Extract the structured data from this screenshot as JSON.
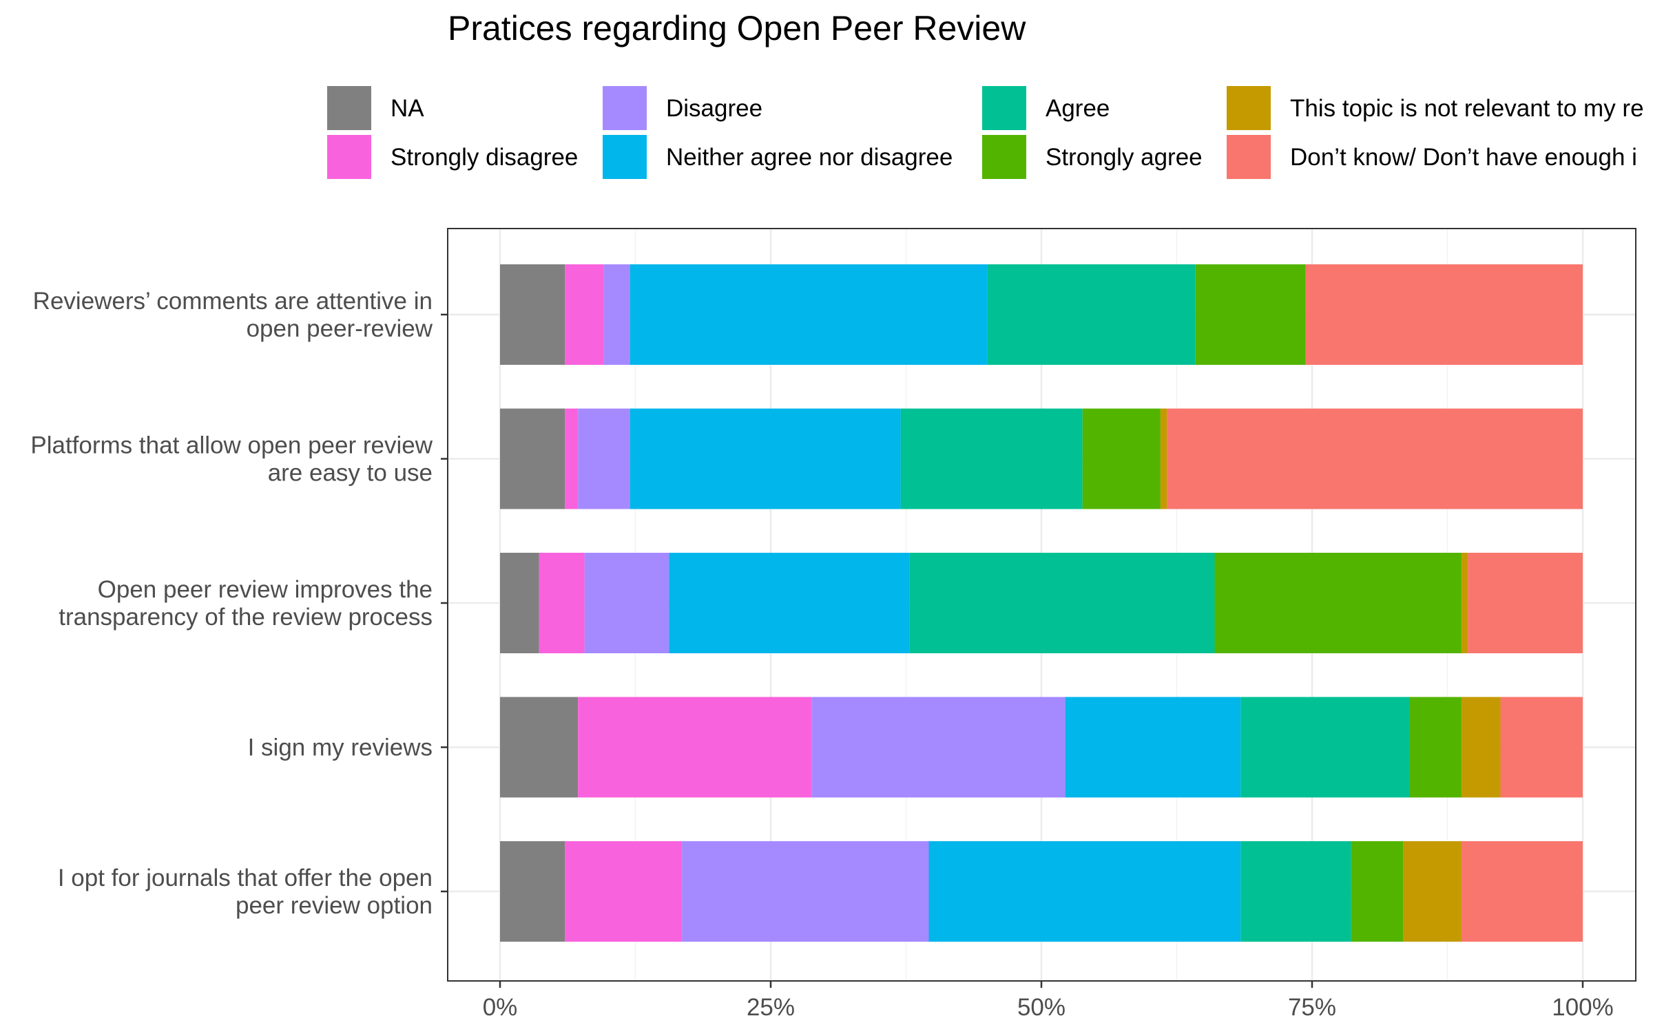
{
  "chart_data": {
    "type": "bar",
    "orientation": "horizontal",
    "stacked": "percent",
    "title": "Pratices regarding Open Peer Review",
    "xlabel": "",
    "ylabel": "",
    "xlim": [
      0,
      1
    ],
    "x_ticks": [
      {
        "value": 0,
        "label": "0%"
      },
      {
        "value": 0.25,
        "label": "25%"
      },
      {
        "value": 0.5,
        "label": "50%"
      },
      {
        "value": 0.75,
        "label": "75%"
      },
      {
        "value": 1,
        "label": "100%"
      }
    ],
    "grid": true,
    "legend_position": "top",
    "categories": [
      "Reviewers’ comments are attentive in open peer-review",
      "Platforms that allow open peer review are easy to use",
      "Open peer review improves the transparency of the review process",
      "I sign my reviews",
      "I opt for journals that offer the open peer review option"
    ],
    "category_label_lines": [
      [
        "Reviewers’ comments are attentive in",
        "open peer-review"
      ],
      [
        "Platforms that allow open peer review",
        "are easy to use"
      ],
      [
        "Open peer review improves the",
        "transparency of the review process"
      ],
      [
        "I sign my reviews"
      ],
      [
        "I opt for journals that offer the open",
        "peer review option"
      ]
    ],
    "series": [
      {
        "name": "NA",
        "color": "#808080",
        "values": [
          0.06,
          0.06,
          0.036,
          0.072,
          0.06
        ]
      },
      {
        "name": "Strongly disagree",
        "color": "#F962DD",
        "values": [
          0.036,
          0.012,
          0.042,
          0.216,
          0.108
        ]
      },
      {
        "name": "Disagree",
        "color": "#A58AFF",
        "values": [
          0.024,
          0.048,
          0.078,
          0.234,
          0.228
        ]
      },
      {
        "name": "Neither agree nor disagree",
        "color": "#00B6EB",
        "values": [
          0.33,
          0.25,
          0.222,
          0.162,
          0.288
        ]
      },
      {
        "name": "Agree",
        "color": "#00C094",
        "values": [
          0.192,
          0.168,
          0.282,
          0.156,
          0.102
        ]
      },
      {
        "name": "Strongly agree",
        "color": "#53B400",
        "values": [
          0.102,
          0.072,
          0.228,
          0.048,
          0.048
        ]
      },
      {
        "name": "This topic is not relevant to my re",
        "color": "#C49A00",
        "values": [
          0.0,
          0.006,
          0.006,
          0.036,
          0.054
        ]
      },
      {
        "name": "Don’t know/ Don’t have enough i",
        "color": "#F8766D",
        "values": [
          0.256,
          0.384,
          0.106,
          0.076,
          0.112
        ]
      }
    ]
  }
}
